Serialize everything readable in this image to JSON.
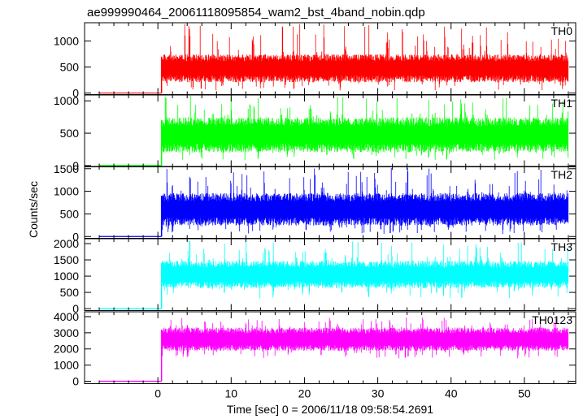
{
  "chart_data": {
    "type": "line",
    "title": "ae999990464_20061118095854_wam2_bst_4band_nobin.qdp",
    "xlabel": "Time [sec] 0 = 2006/11/18 09:58:54.2691",
    "ylabel": "Counts/sec",
    "xlim": [
      -10,
      57
    ],
    "xticks": [
      0,
      10,
      20,
      30,
      40,
      50
    ],
    "xtick_labels": [
      "0",
      "10",
      "20",
      "30",
      "40",
      "50"
    ],
    "grid": false,
    "legend": "none",
    "panels": [
      {
        "name": "TH0",
        "color": "#ff0000",
        "ylim": [
          -30,
          1350
        ],
        "yticks": [
          0,
          500,
          1000
        ],
        "ytick_labels": [
          "0",
          "500",
          "1000"
        ],
        "pre_trigger": {
          "x": [
            -8,
            0.5
          ],
          "level": 0
        },
        "post_trigger": {
          "x": [
            0.5,
            56
          ],
          "low": 50,
          "typical_low": 250,
          "typical_high": 700,
          "high": 1330
        }
      },
      {
        "name": "TH1",
        "color": "#00ff00",
        "ylim": [
          -20,
          1090
        ],
        "yticks": [
          0,
          500,
          1000
        ],
        "ytick_labels": [
          "0",
          "500",
          "1000"
        ],
        "pre_trigger": {
          "x": [
            -8,
            0.5
          ],
          "level": 0
        },
        "post_trigger": {
          "x": [
            0.5,
            56
          ],
          "low": 80,
          "typical_low": 250,
          "typical_high": 700,
          "high": 1080
        }
      },
      {
        "name": "TH2",
        "color": "#0000ff",
        "ylim": [
          -40,
          1550
        ],
        "yticks": [
          0,
          500,
          1000,
          1500
        ],
        "ytick_labels": [
          "0",
          "500",
          "1000",
          "1500"
        ],
        "pre_trigger": {
          "x": [
            -8,
            0.5
          ],
          "level": 0
        },
        "post_trigger": {
          "x": [
            0.5,
            56
          ],
          "low": 50,
          "typical_low": 300,
          "typical_high": 900,
          "high": 1520
        }
      },
      {
        "name": "TH3",
        "color": "#00ffff",
        "ylim": [
          -60,
          2150
        ],
        "yticks": [
          0,
          500,
          1000,
          1500,
          2000
        ],
        "ytick_labels": [
          "0",
          "500",
          "1000",
          "1500",
          "2000"
        ],
        "pre_trigger": {
          "x": [
            -8,
            0.5
          ],
          "level": 0
        },
        "post_trigger": {
          "x": [
            0.5,
            56
          ],
          "low": 300,
          "typical_low": 700,
          "typical_high": 1400,
          "high": 2100
        }
      },
      {
        "name": "TH0123",
        "color": "#ff00ff",
        "ylim": [
          -150,
          4300
        ],
        "yticks": [
          0,
          1000,
          2000,
          3000,
          4000
        ],
        "ytick_labels": [
          "0",
          "1000",
          "2000",
          "3000",
          "4000"
        ],
        "pre_trigger": {
          "x": [
            -8,
            0.5
          ],
          "level": 0
        },
        "post_trigger": {
          "x": [
            0.5,
            56
          ],
          "low": 1400,
          "typical_low": 2000,
          "typical_high": 3200,
          "high": 3950
        }
      }
    ]
  }
}
